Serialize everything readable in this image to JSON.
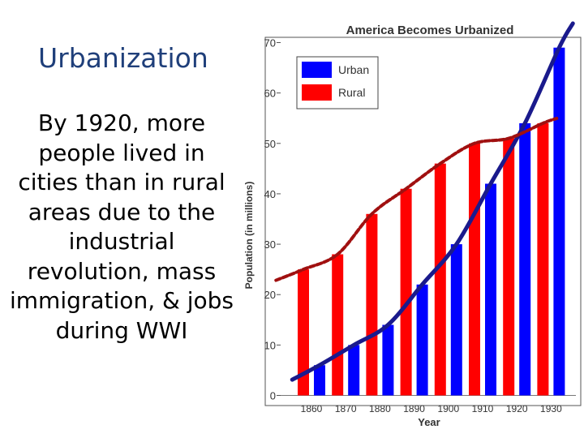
{
  "slide": {
    "title": "Urbanization",
    "body": "By 1920, more people lived in cities than in rural areas due to the industrial revolution, mass immigration, & jobs during WWI"
  },
  "chart_data": {
    "type": "bar",
    "title": "America Becomes Urbanized",
    "xlabel": "Year",
    "ylabel": "Population (in millions)",
    "categories": [
      "1860",
      "1870",
      "1880",
      "1890",
      "1900",
      "1910",
      "1920",
      "1930"
    ],
    "series": [
      {
        "name": "Urban",
        "color": "#0000ff",
        "values": [
          6,
          10,
          14,
          22,
          30,
          42,
          54,
          69
        ]
      },
      {
        "name": "Rural",
        "color": "#ff0000",
        "values": [
          25,
          28,
          36,
          41,
          46,
          50,
          51,
          54
        ]
      }
    ],
    "ylim": [
      0,
      70
    ],
    "yticks": [
      0,
      10,
      20,
      30,
      40,
      50,
      60,
      70
    ],
    "legend": "top-left",
    "grid": false,
    "trend_lines": [
      {
        "series": "Urban",
        "color": "#1a1a8c",
        "style": "solid"
      },
      {
        "series": "Rural",
        "color": "#a01010",
        "style": "dashed"
      }
    ]
  }
}
